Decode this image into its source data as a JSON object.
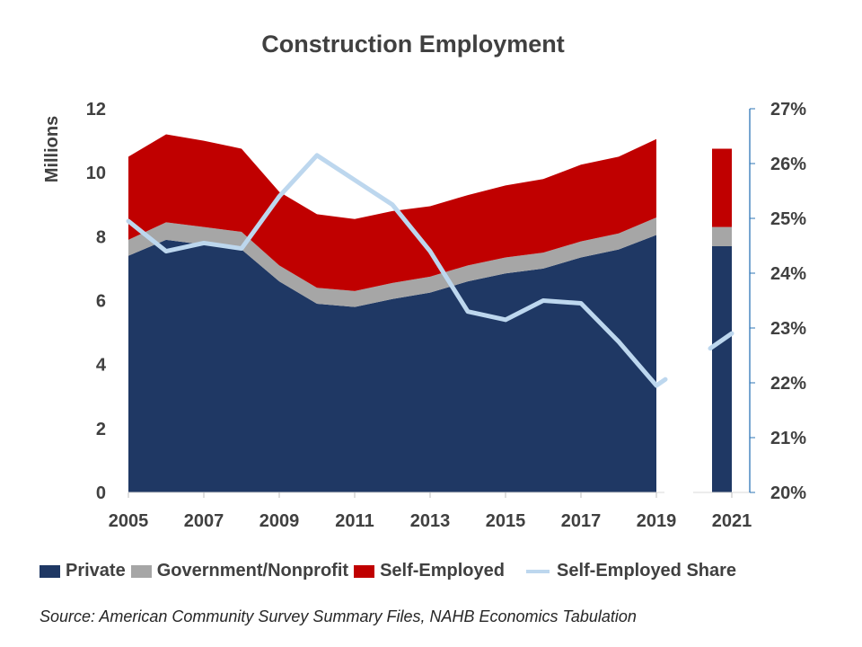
{
  "chart_data": {
    "type": "area",
    "title": "Construction Employment",
    "ylabel": "Millions",
    "ylim": [
      0,
      12
    ],
    "y2lim": [
      20,
      27
    ],
    "y_ticks": [
      "0",
      "2",
      "4",
      "6",
      "8",
      "10",
      "12"
    ],
    "y2_ticks": [
      "20%",
      "21%",
      "22%",
      "23%",
      "24%",
      "25%",
      "26%",
      "27%"
    ],
    "x_ticks": [
      "2005",
      "2007",
      "2009",
      "2011",
      "2013",
      "2015",
      "2017",
      "2019",
      "2021"
    ],
    "stacked": true,
    "gap_year": 2020,
    "x": [
      2005,
      2006,
      2007,
      2008,
      2009,
      2010,
      2011,
      2012,
      2013,
      2014,
      2015,
      2016,
      2017,
      2018,
      2019,
      2021
    ],
    "series": [
      {
        "name": "Private",
        "axis": "left",
        "color": "#1f3864",
        "values": [
          7.4,
          7.9,
          7.75,
          7.6,
          6.6,
          5.9,
          5.8,
          6.05,
          6.25,
          6.6,
          6.85,
          7.0,
          7.35,
          7.6,
          8.05,
          7.7
        ]
      },
      {
        "name": "Government/Nonprofit",
        "axis": "left",
        "color": "#a6a6a6",
        "values": [
          0.5,
          0.55,
          0.55,
          0.55,
          0.5,
          0.5,
          0.5,
          0.5,
          0.5,
          0.5,
          0.5,
          0.5,
          0.5,
          0.5,
          0.55,
          0.6
        ]
      },
      {
        "name": "Self-Employed",
        "axis": "left",
        "color": "#c00000",
        "values": [
          2.6,
          2.75,
          2.7,
          2.6,
          2.3,
          2.3,
          2.25,
          2.25,
          2.2,
          2.2,
          2.25,
          2.3,
          2.4,
          2.4,
          2.45,
          2.45
        ]
      },
      {
        "name": "Self-Employed Share",
        "axis": "right",
        "type": "line",
        "color": "#bdd7ee",
        "values": [
          24.95,
          24.4,
          24.55,
          24.45,
          25.4,
          26.15,
          25.7,
          25.25,
          24.4,
          23.3,
          23.15,
          23.5,
          23.45,
          22.75,
          21.95,
          22.9
        ]
      }
    ],
    "legend_position": "bottom",
    "grid": false
  },
  "source": "Source: American Community Survey Summary Files, NAHB Economics Tabulation"
}
